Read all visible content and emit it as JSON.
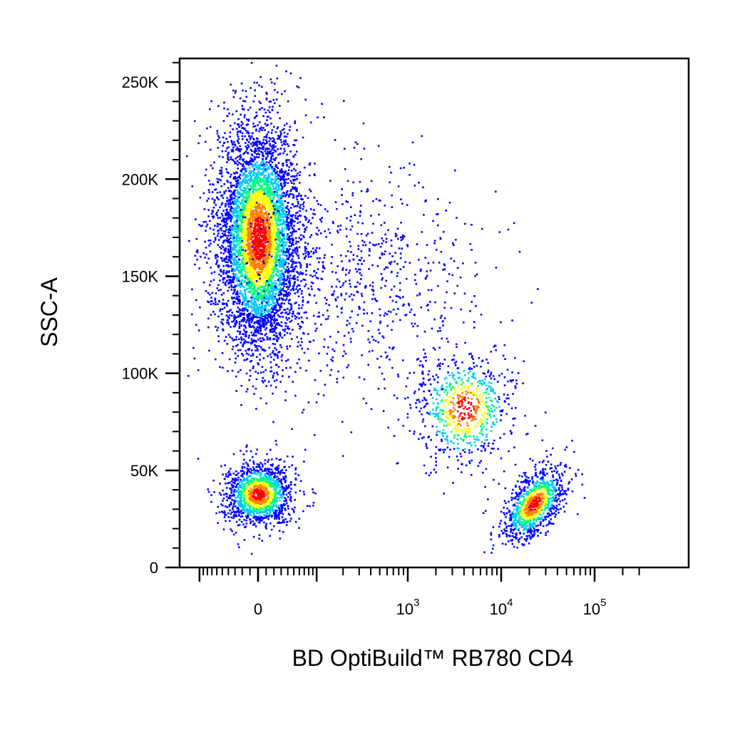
{
  "chart_data": {
    "type": "scatter",
    "plot_style": "pseudocolor density dot plot",
    "xlabel": "BD OptiBuild™ RB780 CD4",
    "ylabel": "SSC-A",
    "x_scale": "biexponential",
    "y_scale": "linear",
    "x_ticks": [
      {
        "value": 0,
        "base": "0",
        "exp": ""
      },
      {
        "value": 1000,
        "base": "10",
        "exp": "3"
      },
      {
        "value": 10000,
        "base": "10",
        "exp": "4"
      },
      {
        "value": 100000,
        "base": "10",
        "exp": "5"
      }
    ],
    "y_ticks": [
      {
        "value": 0,
        "label": "0"
      },
      {
        "value": 50000,
        "label": "50K"
      },
      {
        "value": 100000,
        "label": "100K"
      },
      {
        "value": 150000,
        "label": "150K"
      },
      {
        "value": 200000,
        "label": "200K"
      },
      {
        "value": 250000,
        "label": "250K"
      }
    ],
    "ylim": [
      0,
      262144
    ],
    "xlim": [
      -200,
      300000
    ],
    "density_colors": [
      "#0000ff",
      "#00c8ff",
      "#00ff80",
      "#ffff00",
      "#ff8000",
      "#ff0000"
    ],
    "populations": [
      {
        "center_x": 0,
        "center_y": 170000,
        "events": 5200
      },
      {
        "center_x": 0,
        "center_y": 38000,
        "events": 1400
      },
      {
        "center_x": 4000,
        "center_y": 82000,
        "events": 750
      },
      {
        "center_x": 22000,
        "center_y": 33000,
        "events": 1000
      },
      {
        "center_x": 200,
        "center_y": 150000,
        "events": 900
      }
    ]
  }
}
